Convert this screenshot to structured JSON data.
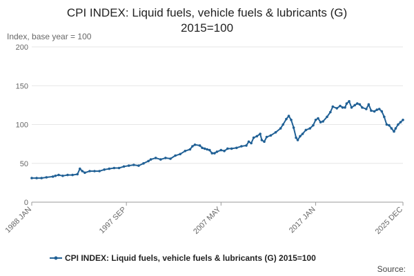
{
  "chart_data": {
    "type": "line",
    "title_line1": "CPI INDEX: Liquid fuels, vehicle fuels & lubricants (G)",
    "title_line2": "2015=100",
    "ylabel": "Index, base year = 100",
    "ylim": [
      0,
      200
    ],
    "yticks": [
      "0",
      "50",
      "100",
      "150",
      "200"
    ],
    "xtick_labels": [
      "1988 JAN",
      "1997 SEP",
      "2007 MAY",
      "2017 JAN",
      "2025 DEC"
    ],
    "grid": true,
    "legend_position": "bottom",
    "series": [
      {
        "name": "CPI INDEX: Liquid fuels, vehicle fuels & lubricants (G) 2015=100",
        "color": "#206095",
        "points": [
          [
            "1988-01",
            31
          ],
          [
            "1988-07",
            31
          ],
          [
            "1989-01",
            31
          ],
          [
            "1989-07",
            32
          ],
          [
            "1990-03",
            33
          ],
          [
            "1990-06",
            34
          ],
          [
            "1990-10",
            35
          ],
          [
            "1991-03",
            34
          ],
          [
            "1991-09",
            35
          ],
          [
            "1992-03",
            35
          ],
          [
            "1992-09",
            36
          ],
          [
            "1992-12",
            43
          ],
          [
            "1993-03",
            40
          ],
          [
            "1993-06",
            38
          ],
          [
            "1993-12",
            40
          ],
          [
            "1994-06",
            40
          ],
          [
            "1994-12",
            40
          ],
          [
            "1995-06",
            42
          ],
          [
            "1995-12",
            43
          ],
          [
            "1996-06",
            44
          ],
          [
            "1996-12",
            44
          ],
          [
            "1997-06",
            46
          ],
          [
            "1997-12",
            47
          ],
          [
            "1998-06",
            48
          ],
          [
            "1998-12",
            47
          ],
          [
            "1999-06",
            50
          ],
          [
            "1999-12",
            53
          ],
          [
            "2000-03",
            55
          ],
          [
            "2000-09",
            57
          ],
          [
            "2001-03",
            55
          ],
          [
            "2001-09",
            57
          ],
          [
            "2002-03",
            56
          ],
          [
            "2002-09",
            60
          ],
          [
            "2003-03",
            62
          ],
          [
            "2003-09",
            66
          ],
          [
            "2004-03",
            68
          ],
          [
            "2004-06",
            72
          ],
          [
            "2004-09",
            74
          ],
          [
            "2005-03",
            73
          ],
          [
            "2005-06",
            70
          ],
          [
            "2005-09",
            69
          ],
          [
            "2005-12",
            68
          ],
          [
            "2006-03",
            67
          ],
          [
            "2006-06",
            63
          ],
          [
            "2006-09",
            63
          ],
          [
            "2006-12",
            65
          ],
          [
            "2007-05",
            67
          ],
          [
            "2007-09",
            66
          ],
          [
            "2008-01",
            69
          ],
          [
            "2008-06",
            69
          ],
          [
            "2008-12",
            70
          ],
          [
            "2009-06",
            72
          ],
          [
            "2009-12",
            73
          ],
          [
            "2010-03",
            78
          ],
          [
            "2010-06",
            76
          ],
          [
            "2010-09",
            83
          ],
          [
            "2011-01",
            85
          ],
          [
            "2011-05",
            88
          ],
          [
            "2011-07",
            80
          ],
          [
            "2011-10",
            78
          ],
          [
            "2012-01",
            84
          ],
          [
            "2012-06",
            86
          ],
          [
            "2012-12",
            90
          ],
          [
            "2013-06",
            95
          ],
          [
            "2013-09",
            100
          ],
          [
            "2014-01",
            107
          ],
          [
            "2014-04",
            111
          ],
          [
            "2014-07",
            106
          ],
          [
            "2014-10",
            96
          ],
          [
            "2015-01",
            83
          ],
          [
            "2015-03",
            80
          ],
          [
            "2015-06",
            85
          ],
          [
            "2015-09",
            88
          ],
          [
            "2016-01",
            93
          ],
          [
            "2016-06",
            95
          ],
          [
            "2016-10",
            99
          ],
          [
            "2017-01",
            106
          ],
          [
            "2017-04",
            108
          ],
          [
            "2017-07",
            103
          ],
          [
            "2017-10",
            104
          ],
          [
            "2018-03",
            110
          ],
          [
            "2018-07",
            116
          ],
          [
            "2018-10",
            123
          ],
          [
            "2019-03",
            121
          ],
          [
            "2019-07",
            124
          ],
          [
            "2019-10",
            122
          ],
          [
            "2020-01",
            122
          ],
          [
            "2020-03",
            127
          ],
          [
            "2020-06",
            130
          ],
          [
            "2020-09",
            122
          ],
          [
            "2021-01",
            125
          ],
          [
            "2021-04",
            127
          ],
          [
            "2021-07",
            126
          ],
          [
            "2021-10",
            122
          ],
          [
            "2022-03",
            120
          ],
          [
            "2022-06",
            126
          ],
          [
            "2022-09",
            118
          ],
          [
            "2023-01",
            117
          ],
          [
            "2023-04",
            119
          ],
          [
            "2023-07",
            120
          ],
          [
            "2023-10",
            117
          ],
          [
            "2024-01",
            110
          ],
          [
            "2024-04",
            100
          ],
          [
            "2024-07",
            99
          ],
          [
            "2024-10",
            95
          ],
          [
            "2025-01",
            91
          ],
          [
            "2025-03",
            95
          ],
          [
            "2025-06",
            100
          ],
          [
            "2025-09",
            103
          ],
          [
            "2025-12",
            106
          ]
        ]
      }
    ]
  },
  "legend": {
    "label": "CPI INDEX: Liquid fuels, vehicle fuels & lubricants (G) 2015=100"
  },
  "footer": {
    "source": "Source:"
  }
}
